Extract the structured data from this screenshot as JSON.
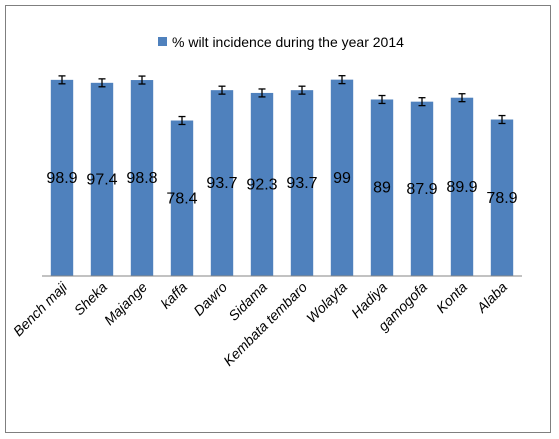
{
  "chart_data": {
    "type": "bar",
    "categories": [
      "Bench maji",
      "Sheka",
      "Majange",
      "kaffa",
      "Dawro",
      "Sidama",
      "Kembata tembaro",
      "Wolayta",
      "Hadiya",
      "gamogofa",
      "Konta",
      "Alaba"
    ],
    "series": [
      {
        "name": "% wilt incidence during the year 2014",
        "values": [
          98.9,
          97.4,
          98.8,
          78.4,
          93.7,
          92.3,
          93.7,
          99,
          89,
          87.9,
          89.9,
          78.9
        ],
        "labels": [
          "98.9",
          "97.4",
          "98.8",
          "78.4",
          "93.7",
          "92.3",
          "93.7",
          "99",
          "89",
          "87.9",
          "89.9",
          "78.9"
        ],
        "error": 2,
        "color": "#4f81bd"
      }
    ],
    "ylim": [
      0,
      120
    ],
    "grid": false,
    "legend": "top",
    "error_bars": true
  }
}
